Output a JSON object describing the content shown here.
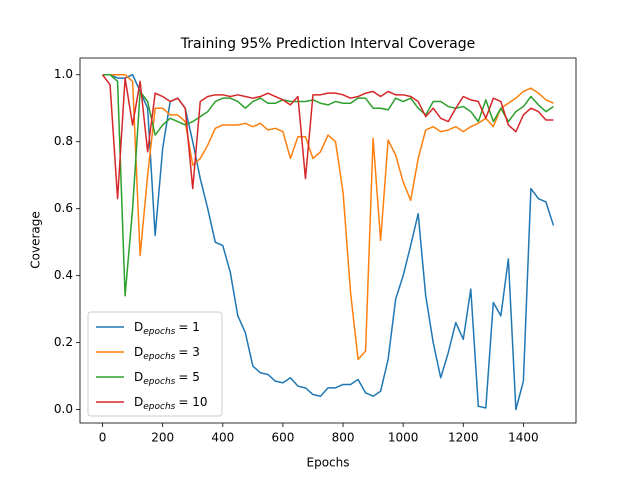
{
  "chart_data": {
    "type": "line",
    "title": "Training 95% Prediction Interval Coverage",
    "x_label": "Epochs",
    "y_label": "Coverage",
    "x": [
      0,
      25,
      50,
      75,
      100,
      125,
      150,
      175,
      200,
      225,
      250,
      275,
      300,
      325,
      350,
      375,
      400,
      425,
      450,
      475,
      500,
      525,
      550,
      575,
      600,
      625,
      650,
      675,
      700,
      725,
      750,
      775,
      800,
      825,
      850,
      875,
      900,
      925,
      950,
      975,
      1000,
      1025,
      1050,
      1075,
      1100,
      1125,
      1150,
      1175,
      1200,
      1225,
      1250,
      1275,
      1300,
      1325,
      1350,
      1375,
      1400,
      1425,
      1450,
      1475,
      1500
    ],
    "series": [
      {
        "name": "D",
        "subscript": "epochs",
        "label": "= 1",
        "color": "#1f77b4",
        "values": [
          1.0,
          1.0,
          0.99,
          0.99,
          1.0,
          0.95,
          0.9,
          0.52,
          0.78,
          0.92,
          0.93,
          0.9,
          0.8,
          0.69,
          0.6,
          0.5,
          0.49,
          0.41,
          0.28,
          0.23,
          0.13,
          0.11,
          0.105,
          0.085,
          0.08,
          0.095,
          0.07,
          0.065,
          0.045,
          0.04,
          0.065,
          0.065,
          0.075,
          0.075,
          0.09,
          0.05,
          0.04,
          0.055,
          0.15,
          0.33,
          0.4,
          0.49,
          0.585,
          0.34,
          0.2,
          0.095,
          0.17,
          0.26,
          0.21,
          0.36,
          0.01,
          0.005,
          0.32,
          0.28,
          0.45,
          0.0,
          0.085,
          0.66,
          0.63,
          0.62,
          0.55
        ]
      },
      {
        "name": "D",
        "subscript": "epochs",
        "label": "= 3",
        "color": "#ff7f0e",
        "values": [
          1.0,
          1.0,
          1.0,
          1.0,
          0.98,
          0.46,
          0.7,
          0.9,
          0.9,
          0.88,
          0.88,
          0.86,
          0.73,
          0.75,
          0.79,
          0.84,
          0.85,
          0.85,
          0.85,
          0.855,
          0.845,
          0.855,
          0.835,
          0.84,
          0.83,
          0.75,
          0.815,
          0.815,
          0.75,
          0.77,
          0.82,
          0.8,
          0.65,
          0.35,
          0.15,
          0.175,
          0.81,
          0.505,
          0.805,
          0.76,
          0.68,
          0.625,
          0.75,
          0.835,
          0.845,
          0.83,
          0.835,
          0.845,
          0.83,
          0.845,
          0.855,
          0.87,
          0.845,
          0.9,
          0.915,
          0.93,
          0.95,
          0.96,
          0.945,
          0.925,
          0.915
        ]
      },
      {
        "name": "D",
        "subscript": "epochs",
        "label": "= 5",
        "color": "#2ca02c",
        "values": [
          1.0,
          1.0,
          0.98,
          0.34,
          0.6,
          0.95,
          0.92,
          0.82,
          0.85,
          0.87,
          0.86,
          0.85,
          0.86,
          0.875,
          0.89,
          0.92,
          0.93,
          0.93,
          0.92,
          0.9,
          0.92,
          0.93,
          0.915,
          0.915,
          0.925,
          0.92,
          0.92,
          0.92,
          0.925,
          0.915,
          0.91,
          0.92,
          0.915,
          0.915,
          0.93,
          0.93,
          0.9,
          0.9,
          0.895,
          0.93,
          0.92,
          0.93,
          0.9,
          0.88,
          0.92,
          0.92,
          0.905,
          0.9,
          0.905,
          0.89,
          0.86,
          0.925,
          0.86,
          0.9,
          0.86,
          0.89,
          0.905,
          0.935,
          0.91,
          0.89,
          0.905
        ]
      },
      {
        "name": "D",
        "subscript": "epochs",
        "label": "= 10",
        "color": "#d62728",
        "values": [
          1.0,
          0.97,
          0.63,
          0.99,
          0.85,
          0.98,
          0.77,
          0.945,
          0.935,
          0.92,
          0.93,
          0.9,
          0.66,
          0.92,
          0.935,
          0.94,
          0.94,
          0.935,
          0.94,
          0.935,
          0.93,
          0.935,
          0.945,
          0.935,
          0.925,
          0.91,
          0.935,
          0.69,
          0.94,
          0.94,
          0.945,
          0.945,
          0.94,
          0.93,
          0.935,
          0.945,
          0.95,
          0.935,
          0.95,
          0.94,
          0.94,
          0.935,
          0.92,
          0.875,
          0.9,
          0.87,
          0.86,
          0.9,
          0.935,
          0.925,
          0.92,
          0.87,
          0.93,
          0.92,
          0.85,
          0.83,
          0.88,
          0.9,
          0.89,
          0.865,
          0.865
        ]
      }
    ],
    "xlim": [
      -75,
      1575
    ],
    "xticks": [
      0,
      200,
      400,
      600,
      800,
      1000,
      1200,
      1400
    ],
    "ylim": [
      -0.04,
      1.05
    ],
    "yticks": [
      {
        "value": 0.0,
        "label": "0.0"
      },
      0.2,
      0.4,
      0.6,
      0.8,
      {
        "value": 1.0,
        "label": "1.0"
      }
    ],
    "legend": "lower left"
  }
}
